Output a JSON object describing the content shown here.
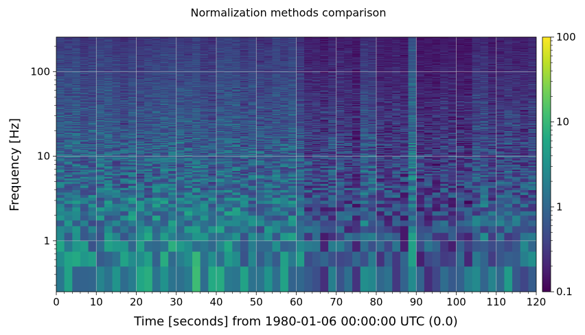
{
  "chart_data": {
    "type": "heatmap",
    "title": "Normalization methods comparison",
    "xlabel": "Time [seconds] from 1980-01-06 00:00:00 UTC (0.0)",
    "ylabel": "Frequency [Hz]",
    "xlim": [
      0,
      120
    ],
    "ylim": [
      0.25,
      256
    ],
    "yscale": "log",
    "x_ticks": [
      0,
      10,
      20,
      30,
      40,
      50,
      60,
      70,
      80,
      90,
      100,
      110,
      120
    ],
    "x_tick_labels": [
      "0",
      "10",
      "20",
      "30",
      "40",
      "50",
      "60",
      "70",
      "80",
      "90",
      "100",
      "110",
      "120"
    ],
    "y_ticks": [
      1,
      10,
      100
    ],
    "y_tick_labels": [
      "1",
      "10",
      "100"
    ],
    "colorbar": {
      "scale": "log",
      "range": [
        0.1,
        100
      ],
      "colormap": "viridis",
      "ticks": [
        0.1,
        1,
        10,
        100
      ],
      "tick_labels": [
        "0.1",
        "1",
        "10",
        "100"
      ]
    },
    "grid": true,
    "time_bin_seconds": 2,
    "frequency_bin_hz": 0.25,
    "quiet_intervals_seconds": [
      [
        62,
        76
      ],
      [
        80,
        88
      ],
      [
        90,
        104
      ]
    ],
    "bright_band_seconds": [
      88,
      90
    ]
  }
}
